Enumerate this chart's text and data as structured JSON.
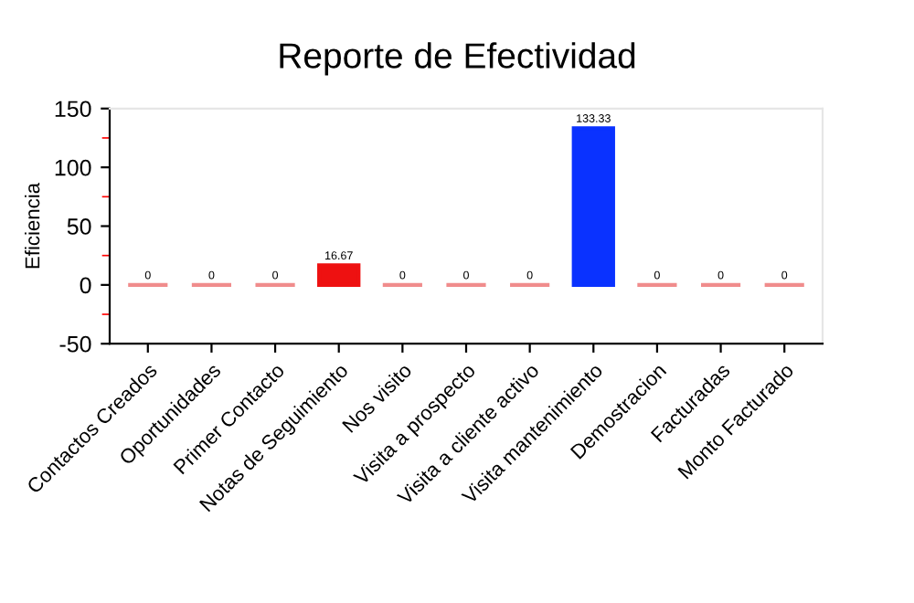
{
  "chart_data": {
    "type": "bar",
    "title": "Reporte de Efectividad",
    "ylabel": "Eficiencia",
    "categories": [
      "Contactos Creados",
      "Oportunidades",
      "Primer Contacto",
      "Notas de Seguimiento",
      "Nos visito",
      "Visita a prospecto",
      "Visita a cliente activo",
      "Visita mantenimiento",
      "Demostracion",
      "Facturadas",
      "Monto Facturado"
    ],
    "values": [
      0,
      0,
      0,
      16.67,
      0,
      0,
      0,
      133.33,
      0,
      0,
      0
    ],
    "colors": [
      "#f08c8c",
      "#f08c8c",
      "#f08c8c",
      "#ee1111",
      "#f08c8c",
      "#f08c8c",
      "#f08c8c",
      "#0a32ff",
      "#f08c8c",
      "#f08c8c",
      "#f08c8c"
    ],
    "value_labels": [
      "0",
      "0",
      "0",
      "16.67",
      "0",
      "0",
      "0",
      "133.33",
      "0",
      "0",
      "0"
    ],
    "ylim": [
      -50,
      150
    ],
    "yticks": [
      -50,
      {
        "value": -25,
        "label": null
      },
      0,
      {
        "value": 25,
        "label": null
      },
      50,
      {
        "value": 75,
        "label": null
      },
      100,
      {
        "value": 125,
        "label": null
      },
      150
    ],
    "grid": false,
    "legend": false
  }
}
